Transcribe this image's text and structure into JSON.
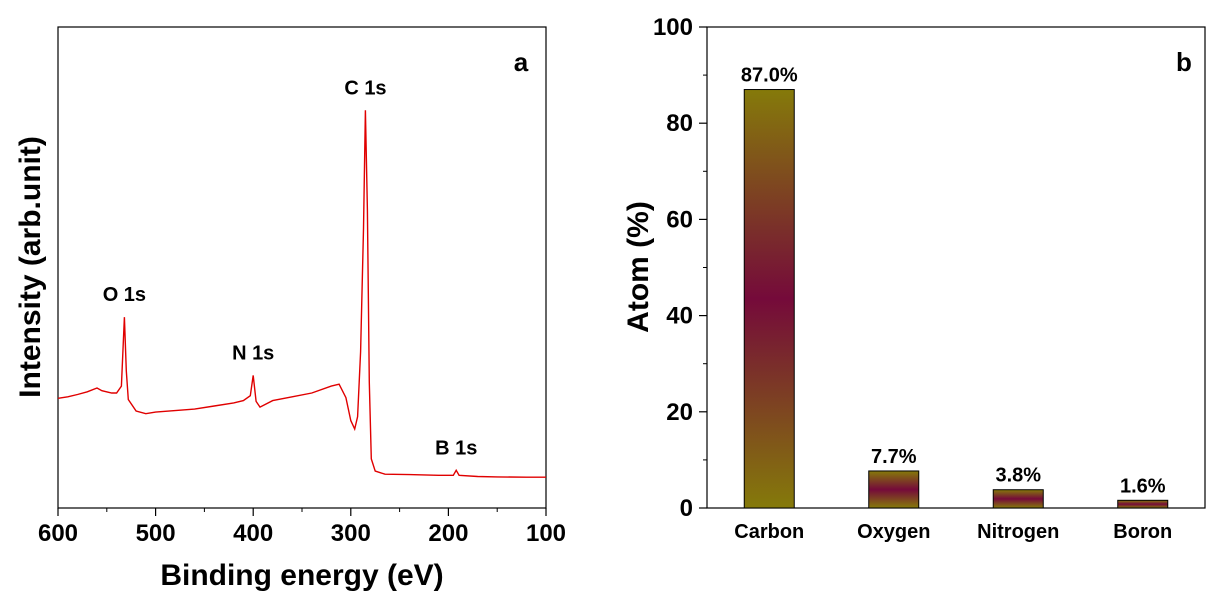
{
  "chart_data": [
    {
      "type": "line",
      "panel_label": "a",
      "xlabel": "Binding energy (eV)",
      "ylabel": "Intensity (arb.unit)",
      "xlim": [
        600,
        100
      ],
      "x_reversed": true,
      "x_ticks": [
        "600",
        "500",
        "400",
        "300",
        "200",
        "100"
      ],
      "y_ticks_shown": false,
      "series": [
        {
          "color": "#e00000",
          "points": [
            [
              600,
              0.208
            ],
            [
              590,
              0.212
            ],
            [
              580,
              0.218
            ],
            [
              570,
              0.225
            ],
            [
              560,
              0.235
            ],
            [
              555,
              0.228
            ],
            [
              545,
              0.222
            ],
            [
              540,
              0.222
            ],
            [
              535,
              0.24
            ],
            [
              532,
              0.42
            ],
            [
              530,
              0.28
            ],
            [
              528,
              0.205
            ],
            [
              520,
              0.175
            ],
            [
              510,
              0.168
            ],
            [
              500,
              0.172
            ],
            [
              480,
              0.176
            ],
            [
              460,
              0.18
            ],
            [
              440,
              0.188
            ],
            [
              420,
              0.196
            ],
            [
              410,
              0.202
            ],
            [
              403,
              0.215
            ],
            [
              400,
              0.268
            ],
            [
              397,
              0.2
            ],
            [
              393,
              0.185
            ],
            [
              380,
              0.202
            ],
            [
              360,
              0.212
            ],
            [
              340,
              0.222
            ],
            [
              320,
              0.24
            ],
            [
              312,
              0.245
            ],
            [
              305,
              0.21
            ],
            [
              300,
              0.15
            ],
            [
              296,
              0.128
            ],
            [
              293,
              0.16
            ],
            [
              290,
              0.33
            ],
            [
              287,
              0.65
            ],
            [
              285,
              0.96
            ],
            [
              283,
              0.7
            ],
            [
              281,
              0.25
            ],
            [
              279,
              0.05
            ],
            [
              275,
              0.018
            ],
            [
              265,
              0.01
            ],
            [
              240,
              0.009
            ],
            [
              210,
              0.007
            ],
            [
              195,
              0.007
            ],
            [
              192,
              0.02
            ],
            [
              189,
              0.007
            ],
            [
              170,
              0.004
            ],
            [
              150,
              0.003
            ],
            [
              120,
              0.002
            ],
            [
              100,
              0.002
            ]
          ]
        }
      ],
      "annotations": [
        {
          "text": "C 1s",
          "x": 285
        },
        {
          "text": "O 1s",
          "x": 532
        },
        {
          "text": "N 1s",
          "x": 400
        },
        {
          "text": "B 1s",
          "x": 192
        }
      ]
    },
    {
      "type": "bar",
      "panel_label": "b",
      "ylabel": "Atom (%)",
      "ylim": [
        0,
        100
      ],
      "y_ticks": [
        "0",
        "20",
        "40",
        "60",
        "80",
        "100"
      ],
      "categories": [
        "Carbon",
        "Oxygen",
        "Nitrogen",
        "Boron"
      ],
      "values": [
        87.0,
        7.7,
        3.8,
        1.6
      ],
      "data_labels": [
        "87.0%",
        "7.7%",
        "3.8%",
        "1.6%"
      ],
      "bar_gradient": [
        "#857a0a",
        "#750a3a"
      ]
    }
  ]
}
